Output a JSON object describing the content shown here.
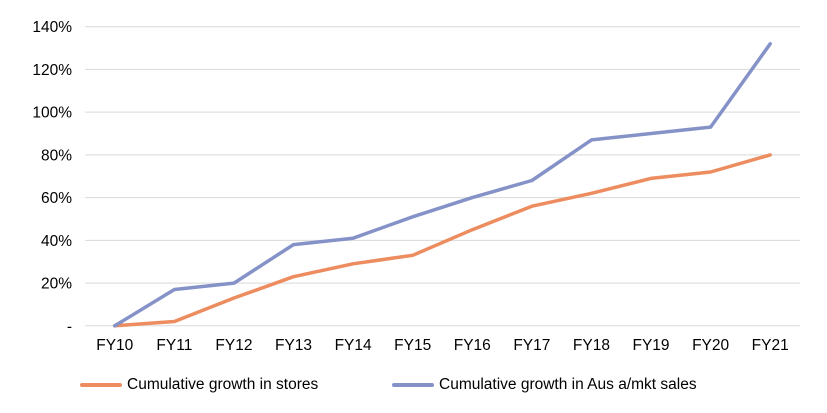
{
  "chart_data": {
    "type": "line",
    "title": "",
    "xlabel": "",
    "ylabel": "",
    "categories": [
      "FY10",
      "FY11",
      "FY12",
      "FY13",
      "FY14",
      "FY15",
      "FY16",
      "FY17",
      "FY18",
      "FY19",
      "FY20",
      "FY21"
    ],
    "series": [
      {
        "name": "Cumulative growth in stores",
        "color": "#EC8C5F",
        "values": [
          0,
          2,
          13,
          23,
          29,
          33,
          45,
          56,
          62,
          69,
          72,
          80
        ]
      },
      {
        "name": "Cumulative growth in Aus a/mkt sales",
        "color": "#8592C8",
        "values": [
          0,
          17,
          20,
          38,
          41,
          51,
          60,
          68,
          87,
          90,
          93,
          132
        ]
      }
    ],
    "ylim": [
      0,
      140
    ],
    "y_ticks": [
      0,
      20,
      40,
      60,
      80,
      100,
      120,
      140
    ],
    "y_tick_labels": [
      "-",
      "20%",
      "40%",
      "60%",
      "80%",
      "100%",
      "120%",
      "140%"
    ],
    "y_unit": "percent",
    "grid": "horizontal",
    "gridline_color": "#D9D9D9",
    "axis_text_color": "#000000",
    "legend_position": "bottom",
    "line_width": 3.5
  }
}
